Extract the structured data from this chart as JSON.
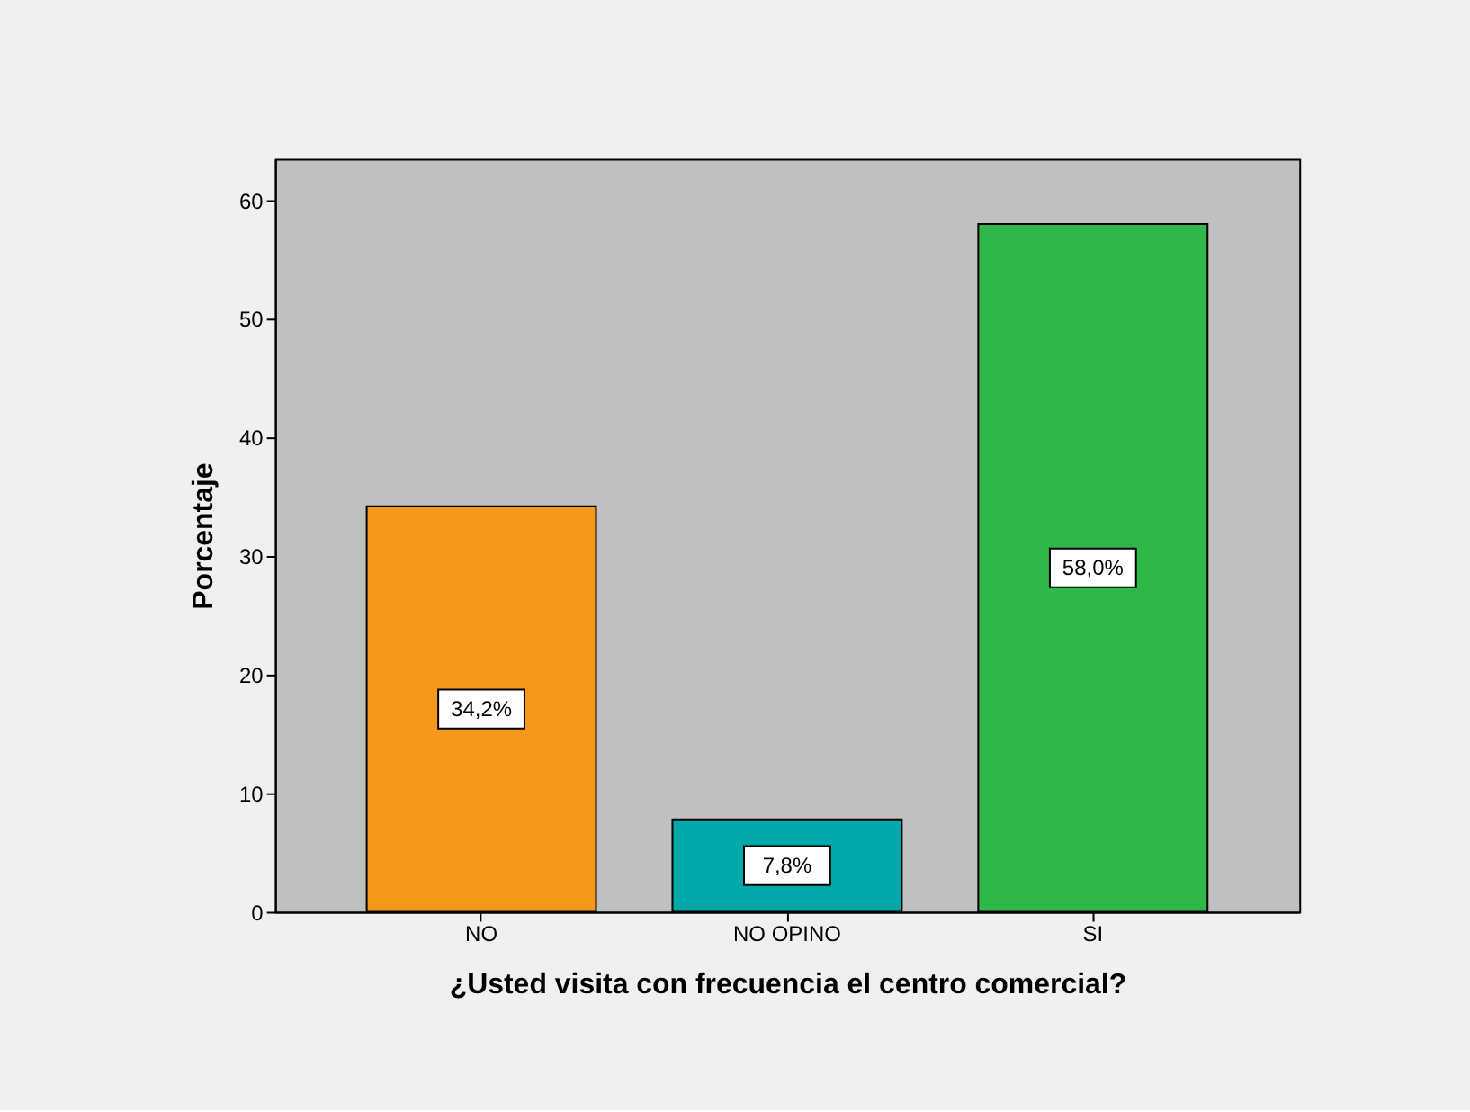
{
  "chart_data": {
    "type": "bar",
    "xlabel": "¿Usted visita con frecuencia el centro comercial?",
    "ylabel": "Porcentaje",
    "categories": [
      "NO",
      "NO OPINO",
      "SI"
    ],
    "values": [
      34.2,
      7.8,
      58.0
    ],
    "colors": [
      "#f7981d",
      "#00a9a9",
      "#2eb84a"
    ],
    "value_labels": [
      "34,2%",
      "7,8%",
      "58,0%"
    ],
    "ylim": [
      0,
      63.5
    ],
    "yticks": [
      0,
      10,
      20,
      30,
      40,
      50,
      60
    ]
  }
}
